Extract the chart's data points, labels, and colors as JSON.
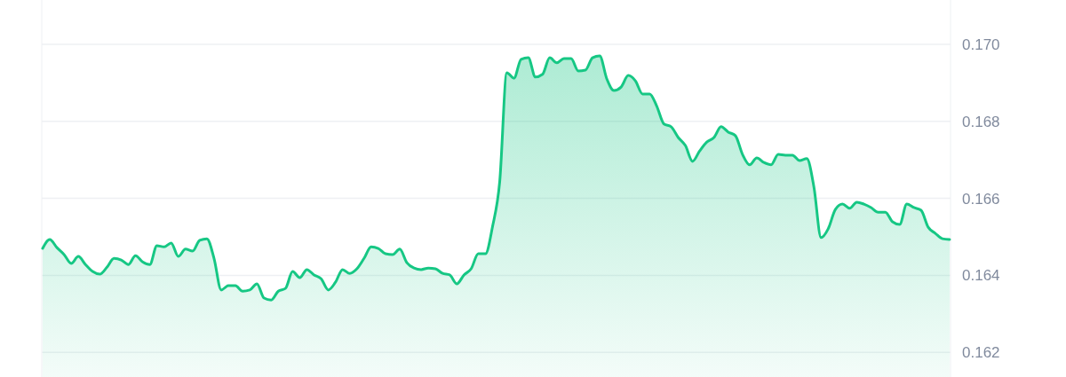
{
  "chart_data": {
    "type": "area",
    "categories": [
      null,
      null,
      null,
      null,
      null,
      null,
      null,
      null,
      null,
      null,
      null,
      null,
      null,
      null,
      null,
      null,
      null,
      null,
      null,
      null,
      null,
      null,
      null,
      null,
      null,
      null,
      null,
      null,
      null,
      null,
      null,
      null,
      null,
      null,
      null,
      null,
      null,
      null,
      null,
      null,
      null,
      null,
      null,
      null,
      null,
      null,
      null,
      null,
      null,
      null,
      null,
      null,
      null,
      null,
      null,
      null,
      null,
      null,
      null,
      null,
      null,
      null,
      null,
      null,
      null,
      null,
      null,
      null,
      null,
      null,
      null,
      null,
      null,
      null,
      null,
      null,
      null,
      null,
      null,
      null,
      null,
      null,
      null,
      null,
      null,
      null,
      null,
      null,
      null,
      null,
      null,
      null,
      null,
      null,
      null,
      null,
      null,
      null,
      null,
      null,
      null,
      null,
      null,
      null,
      null,
      null,
      null,
      null,
      null,
      null,
      null,
      null,
      null,
      null,
      null,
      null,
      null,
      null,
      null,
      null,
      null,
      null,
      null,
      null,
      null,
      null,
      null,
      null
    ],
    "series": [
      {
        "color": "#16c784",
        "values": [
          0.1647,
          0.16493,
          0.16472,
          0.16454,
          0.16431,
          0.16449,
          0.16428,
          0.1641,
          0.16403,
          0.16421,
          0.16444,
          0.1644,
          0.16428,
          0.16451,
          0.16435,
          0.16428,
          0.16477,
          0.16474,
          0.16484,
          0.16449,
          0.16468,
          0.16463,
          0.16491,
          0.16495,
          0.16444,
          0.16362,
          0.16373,
          0.16373,
          0.16359,
          0.16362,
          0.16378,
          0.16341,
          0.16336,
          0.16359,
          0.16366,
          0.1641,
          0.16394,
          0.16415,
          0.16401,
          0.16391,
          0.16362,
          0.16382,
          0.16415,
          0.16405,
          0.16417,
          0.16444,
          0.16474,
          0.1647,
          0.16456,
          0.16454,
          0.16468,
          0.16433,
          0.16419,
          0.16415,
          0.16419,
          0.16417,
          0.16405,
          0.16401,
          0.16378,
          0.16401,
          0.16417,
          0.16456,
          0.16456,
          0.16527,
          0.16643,
          0.16926,
          0.16912,
          0.16961,
          0.16965,
          0.16915,
          0.16922,
          0.16965,
          0.16952,
          0.16963,
          0.16963,
          0.16931,
          0.16933,
          0.16965,
          0.1697,
          0.1691,
          0.1688,
          0.16889,
          0.16919,
          0.16905,
          0.16871,
          0.16871,
          0.16839,
          0.16793,
          0.16786,
          0.16758,
          0.16737,
          0.16696,
          0.16723,
          0.16746,
          0.16758,
          0.16786,
          0.16772,
          0.16763,
          0.16714,
          0.16687,
          0.16705,
          0.16693,
          0.16687,
          0.16714,
          0.16712,
          0.16712,
          0.16698,
          0.16703,
          0.16629,
          0.16498,
          0.16521,
          0.16571,
          0.16585,
          0.16574,
          0.1659,
          0.16585,
          0.16576,
          0.16564,
          0.16564,
          0.16539,
          0.16532,
          0.16585,
          0.16576,
          0.16569,
          0.16525,
          0.16509,
          0.16495,
          0.16493
        ]
      }
    ],
    "ylim": [
      0.16136,
      0.17115
    ],
    "yticks": [
      {
        "value": 0.162,
        "label": "0.162"
      },
      {
        "value": 0.164,
        "label": "0.164"
      },
      {
        "value": 0.166,
        "label": "0.166"
      },
      {
        "value": 0.168,
        "label": "0.168"
      },
      {
        "value": 0.17,
        "label": "0.170"
      }
    ],
    "grid": "y"
  }
}
